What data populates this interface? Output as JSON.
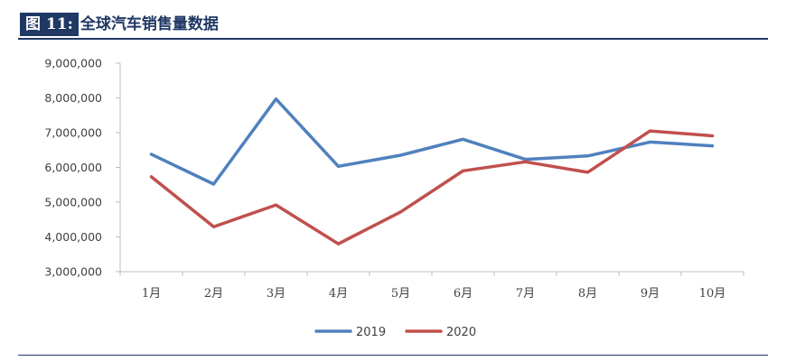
{
  "header": {
    "label": "图 11:",
    "title": "全球汽车销售量数据"
  },
  "chart_data": {
    "type": "line",
    "categories": [
      "1月",
      "2月",
      "3月",
      "4月",
      "5月",
      "6月",
      "7月",
      "8月",
      "9月",
      "10月"
    ],
    "series": [
      {
        "name": "2019",
        "color": "#4f81bd",
        "values": [
          6380000,
          5520000,
          7970000,
          6030000,
          6350000,
          6810000,
          6230000,
          6330000,
          6730000,
          6620000
        ]
      },
      {
        "name": "2020",
        "color": "#c0504d",
        "values": [
          5730000,
          4290000,
          4920000,
          3800000,
          4720000,
          5900000,
          6160000,
          5860000,
          7050000,
          6910000
        ]
      }
    ],
    "yticks": [
      "3,000,000",
      "4,000,000",
      "5,000,000",
      "6,000,000",
      "7,000,000",
      "8,000,000",
      "9,000,000"
    ],
    "ylim": [
      3000000,
      9000000
    ],
    "grid": false,
    "legend_position": "bottom",
    "title": "",
    "xlabel": "",
    "ylabel": ""
  }
}
